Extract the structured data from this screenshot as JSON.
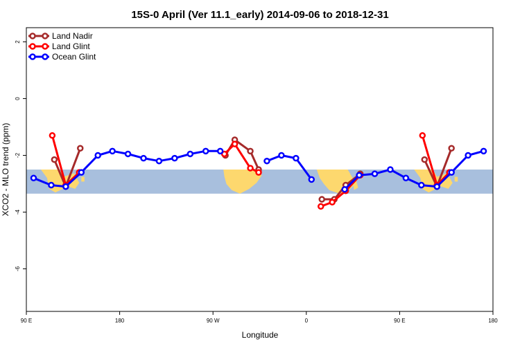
{
  "chart_data": {
    "type": "line",
    "title": "15S-0 April (Ver 11.1_early)   2014-09-06 to 2018-12-31",
    "xlabel": "Longitude",
    "ylabel": "XCO2 - MLO trend (ppm)",
    "x_ticks": [
      {
        "value": 90,
        "label": "90 E"
      },
      {
        "value": 180,
        "label": "180"
      },
      {
        "value": 270,
        "label": "90 W"
      },
      {
        "value": 360,
        "label": "0"
      },
      {
        "value": 450,
        "label": "90 E"
      },
      {
        "value": 540,
        "label": "180"
      }
    ],
    "y_ticks": [
      {
        "value": 2,
        "label": "2"
      },
      {
        "value": 0,
        "label": "0"
      },
      {
        "value": -2,
        "label": "-2"
      },
      {
        "value": -4,
        "label": "-4"
      },
      {
        "value": -6,
        "label": "-6"
      }
    ],
    "xlim": [
      90,
      540
    ],
    "ylim": [
      -7.5,
      2.5
    ],
    "legend_position": "top-left",
    "map_band": {
      "y_top": -2.5,
      "y_bottom": -3.35,
      "ocean_color": "#a8bfdd",
      "land_color": "#fdd86e"
    },
    "series": [
      {
        "name": "Land Nadir",
        "color": "#a52a2a",
        "segments": [
          [
            [
              117,
              -2.15
            ],
            [
              128,
              -3.1
            ],
            [
              142,
              -1.75
            ]
          ],
          [
            [
              282,
              -2.0
            ],
            [
              291,
              -1.45
            ],
            [
              306,
              -1.85
            ],
            [
              314,
              -2.5
            ]
          ],
          [
            [
              375,
              -3.55
            ],
            [
              387,
              -3.55
            ],
            [
              398,
              -3.05
            ],
            [
              412,
              -2.65
            ]
          ],
          [
            [
              474,
              -2.15
            ],
            [
              486,
              -3.1
            ],
            [
              500,
              -1.75
            ]
          ]
        ]
      },
      {
        "name": "Land Glint",
        "color": "#ff0000",
        "segments": [
          [
            [
              115,
              -1.3
            ],
            [
              128,
              -3.05
            ],
            [
              141,
              -2.6
            ]
          ],
          [
            [
              281,
              -1.95
            ],
            [
              291,
              -1.6
            ],
            [
              306,
              -2.45
            ],
            [
              314,
              -2.6
            ]
          ],
          [
            [
              374,
              -3.8
            ],
            [
              385,
              -3.65
            ],
            [
              398,
              -3.25
            ],
            [
              412,
              -2.7
            ]
          ],
          [
            [
              472,
              -1.3
            ],
            [
              486,
              -3.05
            ],
            [
              498,
              -2.6
            ]
          ]
        ]
      },
      {
        "name": "Ocean Glint",
        "color": "#0000ff",
        "segments": [
          [
            [
              97,
              -2.8
            ],
            [
              114,
              -3.05
            ],
            [
              128,
              -3.1
            ],
            [
              143,
              -2.6
            ],
            [
              159,
              -2.0
            ],
            [
              173,
              -1.85
            ],
            [
              188,
              -1.95
            ],
            [
              203,
              -2.1
            ],
            [
              218,
              -2.2
            ],
            [
              233,
              -2.1
            ],
            [
              248,
              -1.95
            ],
            [
              263,
              -1.85
            ],
            [
              277,
              -1.85
            ]
          ],
          [
            [
              322,
              -2.2
            ],
            [
              336,
              -2.0
            ],
            [
              350,
              -2.1
            ],
            [
              365,
              -2.85
            ]
          ],
          [
            [
              397,
              -3.2
            ],
            [
              411,
              -2.7
            ],
            [
              426,
              -2.65
            ],
            [
              441,
              -2.5
            ],
            [
              456,
              -2.8
            ],
            [
              471,
              -3.05
            ],
            [
              486,
              -3.1
            ],
            [
              500,
              -2.6
            ],
            [
              516,
              -2.0
            ],
            [
              531,
              -1.85
            ]
          ]
        ]
      }
    ]
  }
}
